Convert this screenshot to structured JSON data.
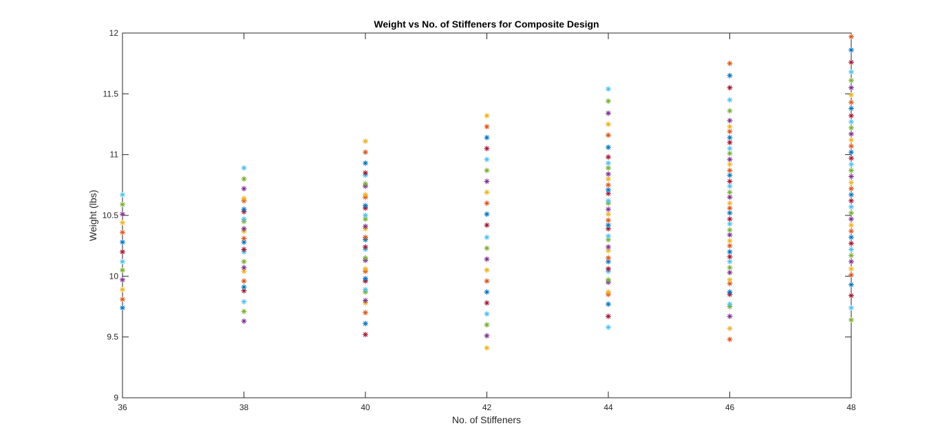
{
  "chart_data": {
    "type": "scatter",
    "title": "Weight vs No. of Stiffeners for Composite Design",
    "xlabel": "No. of Stiffeners",
    "ylabel": "Weight (lbs)",
    "xlim": [
      36,
      48
    ],
    "ylim": [
      9,
      12
    ],
    "xticks": [
      "36",
      "38",
      "40",
      "42",
      "44",
      "46",
      "48"
    ],
    "yticks": [
      "9",
      "9.5",
      "10",
      "10.5",
      "11",
      "11.5",
      "12"
    ],
    "grid": false,
    "marker": "asterisk",
    "colors": [
      "#0072BD",
      "#D95319",
      "#EDB120",
      "#7E2F8E",
      "#77AC30",
      "#4DBEEE",
      "#A2142F"
    ],
    "series": [
      {
        "x": 36,
        "y": [
          9.74,
          9.81,
          9.89,
          9.97,
          10.05,
          10.12,
          10.2,
          10.28,
          10.36,
          10.44,
          10.51,
          10.59,
          10.67
        ]
      },
      {
        "x": 38,
        "y": [
          9.63,
          9.71,
          9.79,
          9.88,
          9.91,
          9.96,
          10.04,
          10.07,
          10.12,
          10.2,
          10.22,
          10.28,
          10.31,
          10.37,
          10.39,
          10.45,
          10.47,
          10.53,
          10.55,
          10.62,
          10.64,
          10.72,
          10.8,
          10.89
        ]
      },
      {
        "x": 40,
        "y": [
          9.52,
          9.61,
          9.7,
          9.78,
          9.8,
          9.87,
          9.89,
          9.96,
          9.98,
          10.04,
          10.06,
          10.13,
          10.15,
          10.22,
          10.24,
          10.3,
          10.32,
          10.39,
          10.41,
          10.47,
          10.5,
          10.56,
          10.58,
          10.65,
          10.67,
          10.74,
          10.76,
          10.83,
          10.85,
          10.93,
          11.02,
          11.11
        ]
      },
      {
        "x": 42,
        "y": [
          9.41,
          9.51,
          9.6,
          9.69,
          9.78,
          9.87,
          9.96,
          10.05,
          10.14,
          10.23,
          10.32,
          10.42,
          10.51,
          10.6,
          10.69,
          10.78,
          10.87,
          10.96,
          11.05,
          11.14,
          11.23,
          11.32
        ]
      },
      {
        "x": 44,
        "y": [
          9.58,
          9.67,
          9.77,
          9.85,
          9.87,
          9.95,
          9.97,
          10.04,
          10.06,
          10.12,
          10.15,
          10.21,
          10.24,
          10.3,
          10.33,
          10.39,
          10.42,
          10.46,
          10.51,
          10.55,
          10.6,
          10.62,
          10.68,
          10.71,
          10.75,
          10.8,
          10.84,
          10.89,
          10.93,
          10.98,
          11.06,
          11.16,
          11.25,
          11.34,
          11.44,
          11.54
        ]
      },
      {
        "x": 46,
        "y": [
          9.48,
          9.57,
          9.67,
          9.75,
          9.77,
          9.85,
          9.87,
          9.94,
          9.97,
          10.03,
          10.07,
          10.12,
          10.16,
          10.2,
          10.25,
          10.29,
          10.34,
          10.38,
          10.43,
          10.47,
          10.52,
          10.56,
          10.6,
          10.65,
          10.69,
          10.74,
          10.78,
          10.83,
          10.87,
          10.92,
          10.96,
          11.01,
          11.05,
          11.1,
          11.14,
          11.19,
          11.23,
          11.28,
          11.36,
          11.45,
          11.55,
          11.65,
          11.75
        ]
      },
      {
        "x": 48,
        "y": [
          9.64,
          9.74,
          9.84,
          9.93,
          10.01,
          10.06,
          10.12,
          10.17,
          10.22,
          10.27,
          10.32,
          10.37,
          10.42,
          10.47,
          10.52,
          10.57,
          10.62,
          10.67,
          10.72,
          10.77,
          10.82,
          10.87,
          10.92,
          10.97,
          11.02,
          11.07,
          11.12,
          11.17,
          11.22,
          11.27,
          11.32,
          11.38,
          11.43,
          11.49,
          11.55,
          11.61,
          11.68,
          11.76,
          11.86,
          11.97
        ]
      }
    ]
  }
}
